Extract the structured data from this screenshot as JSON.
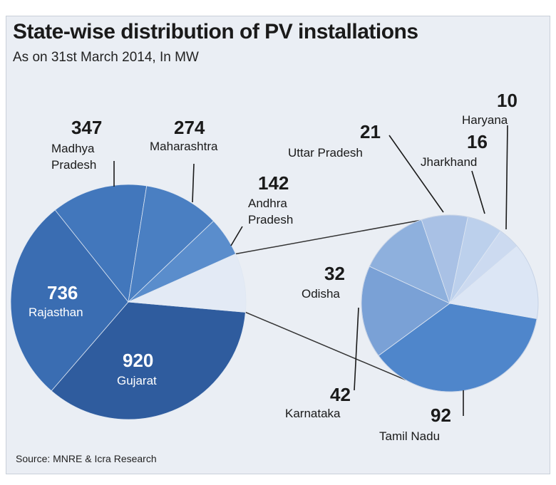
{
  "header": {
    "title": "State-wise distribution of PV installations",
    "subtitle": "As on 31st March 2014, In MW"
  },
  "footer": {
    "source": "Source: MNRE & Icra Research"
  },
  "colors": {
    "gujarat": "#2f5c9e",
    "rajasthan": "#3a6db2",
    "madhya_pradesh": "#4277bc",
    "maharashtra": "#4a7fc2",
    "andhra_pradesh": "#5a8dcc",
    "others": "#e3eaf5",
    "tamil_nadu": "#4f86cb",
    "karnataka": "#7aa1d6",
    "odisha": "#8eb0dd",
    "uttar_pradesh": "#a9c1e5",
    "jharkhand": "#bcd0ec",
    "haryana": "#ccdaf0",
    "rest": "#dce6f5",
    "leader": "#1a1a1a",
    "connector": "#333333"
  },
  "chart_data": {
    "type": "pie",
    "unit": "MW",
    "main": {
      "slices": [
        {
          "label": "Gujarat",
          "value": 920
        },
        {
          "label": "Rajasthan",
          "value": 736
        },
        {
          "label": "Madhya Pradesh",
          "value": 347
        },
        {
          "label": "Maharashtra",
          "value": 274
        },
        {
          "label": "Andhra Pradesh",
          "value": 142
        }
      ]
    },
    "breakout": {
      "slices": [
        {
          "label": "Tamil Nadu",
          "value": 92
        },
        {
          "label": "Karnataka",
          "value": 42
        },
        {
          "label": "Odisha",
          "value": 32
        },
        {
          "label": "Uttar Pradesh",
          "value": 21
        },
        {
          "label": "Jharkhand",
          "value": 16
        },
        {
          "label": "Haryana",
          "value": 10
        }
      ]
    },
    "labels": {
      "gujarat": {
        "value": "920",
        "name": "Gujarat"
      },
      "rajasthan": {
        "value": "736",
        "name": "Rajasthan"
      },
      "madhya_pradesh": {
        "value": "347",
        "name1": "Madhya",
        "name2": "Pradesh"
      },
      "maharashtra": {
        "value": "274",
        "name": "Maharashtra"
      },
      "andhra_pradesh": {
        "value": "142",
        "name1": "Andhra",
        "name2": "Pradesh"
      },
      "uttar_pradesh": {
        "value": "21",
        "name": "Uttar Pradesh"
      },
      "jharkhand": {
        "value": "16",
        "name": "Jharkhand"
      },
      "haryana": {
        "value": "10",
        "name": "Haryana"
      },
      "odisha": {
        "value": "32",
        "name": "Odisha"
      },
      "karnataka": {
        "value": "42",
        "name": "Karnataka"
      },
      "tamil_nadu": {
        "value": "92",
        "name": "Tamil Nadu"
      }
    }
  }
}
